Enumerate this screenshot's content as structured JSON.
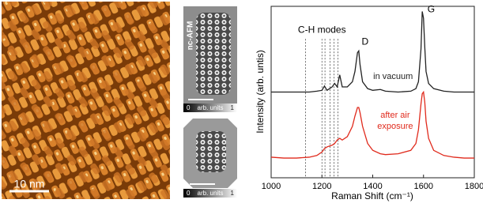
{
  "panels": {
    "afm_large": {
      "scale_bar": "10 nm"
    },
    "afm_top": {
      "label": "nc-AFM",
      "colorbar_min": "0",
      "colorbar_units": "arb. units",
      "colorbar_max": "1"
    },
    "afm_bottom": {
      "colorbar_min": "0",
      "colorbar_units": "arb. units",
      "colorbar_max": "1"
    }
  },
  "chart_data": {
    "type": "line",
    "xlabel": "Raman Shift (cm⁻¹)",
    "ylabel": "Intensity (arb. untis)",
    "xlim": [
      1000,
      1800
    ],
    "xticks": [
      1000,
      1200,
      1400,
      1600,
      1800
    ],
    "ylim": [
      0,
      10
    ],
    "x": [
      1000,
      1050,
      1100,
      1150,
      1180,
      1200,
      1210,
      1220,
      1240,
      1250,
      1260,
      1270,
      1280,
      1300,
      1320,
      1330,
      1340,
      1345,
      1350,
      1360,
      1380,
      1400,
      1430,
      1450,
      1500,
      1550,
      1570,
      1580,
      1590,
      1595,
      1600,
      1605,
      1610,
      1620,
      1640,
      1680,
      1720,
      1760,
      1800
    ],
    "series": [
      {
        "name": "in vacuum",
        "color": "#222222",
        "values": [
          5.0,
          5.0,
          5.0,
          5.0,
          5.05,
          5.1,
          5.35,
          5.1,
          5.3,
          5.5,
          5.3,
          6.0,
          5.3,
          5.3,
          5.6,
          6.2,
          7.3,
          7.4,
          6.6,
          5.6,
          5.2,
          5.1,
          5.15,
          5.05,
          5.0,
          5.05,
          5.2,
          5.6,
          7.5,
          9.7,
          9.3,
          7.6,
          6.2,
          5.5,
          5.2,
          5.05,
          5.0,
          5.0,
          5.0
        ]
      },
      {
        "name": "after air exposure",
        "color": "#e02a1c",
        "values": [
          1.2,
          1.15,
          1.15,
          1.2,
          1.3,
          1.5,
          1.7,
          1.8,
          1.9,
          2.0,
          2.2,
          2.3,
          2.2,
          2.4,
          3.0,
          3.6,
          4.1,
          4.1,
          3.8,
          3.0,
          2.0,
          1.6,
          1.4,
          1.35,
          1.4,
          1.6,
          2.0,
          2.8,
          4.3,
          4.9,
          5.0,
          4.4,
          3.3,
          2.3,
          1.6,
          1.3,
          1.2,
          1.15,
          1.15
        ]
      }
    ],
    "reference_lines_x": [
      1135,
      1200,
      1212,
      1232,
      1248,
      1263
    ],
    "annotations": [
      {
        "text": "C-H modes",
        "x": 1200,
        "y": 8.6
      },
      {
        "text": "D",
        "x": 1370,
        "y": 7.9
      },
      {
        "text": "G",
        "x": 1630,
        "y": 9.8
      }
    ]
  }
}
